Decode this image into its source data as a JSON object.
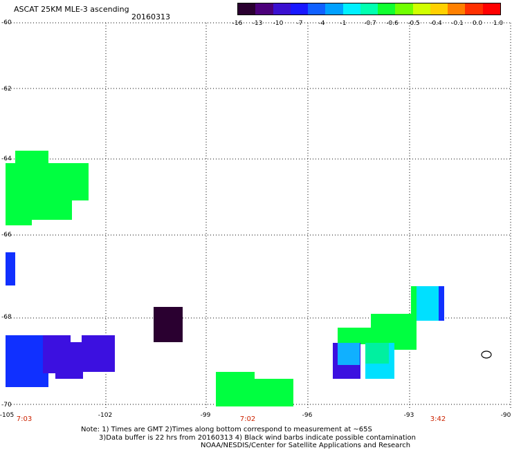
{
  "header": {
    "title": "ASCAT 25KM MLE-3 ascending",
    "date": "20160313"
  },
  "colorbar": {
    "colors": [
      "#2a0030",
      "#4b007a",
      "#3a10d0",
      "#1818ff",
      "#1060ff",
      "#00a0ff",
      "#00f0ff",
      "#00ffb0",
      "#10ff30",
      "#70ff00",
      "#d0ff00",
      "#ffd000",
      "#ff8000",
      "#ff3000",
      "#ff0000"
    ],
    "labels": [
      "-16",
      "-13",
      "-10",
      "-7",
      "-4",
      "-1",
      "-0.7",
      "-0.6",
      "-0.5",
      "-0.4",
      "-0.1",
      "0.0",
      "1.0"
    ]
  },
  "axes": {
    "lat_labels": [
      "-60",
      "-62",
      "-64",
      "-66",
      "-68",
      "-70"
    ],
    "lon_labels": [
      "-105",
      "-102",
      "-99",
      "-96",
      "-93",
      "-90"
    ]
  },
  "times": [
    "7:03",
    "7:02",
    "3:42"
  ],
  "notes": {
    "line1": "Note: 1) Times are GMT 2)Times along bottom correspond to measurement at ~65S",
    "line2": "3)Data buffer is 22 hrs from 20160313 4) Black wind barbs indicate possible contamination",
    "line3": "NOAA/NESDIS/Center for Satellite Applications and Research"
  },
  "colors": {
    "green": "#00ff40",
    "dark": "#2a0030",
    "blue": "#1030ff",
    "indigo": "#3c10e0",
    "cyan": "#00e0ff",
    "skyblue": "#10b0ff",
    "teal": "#00f0a0"
  }
}
